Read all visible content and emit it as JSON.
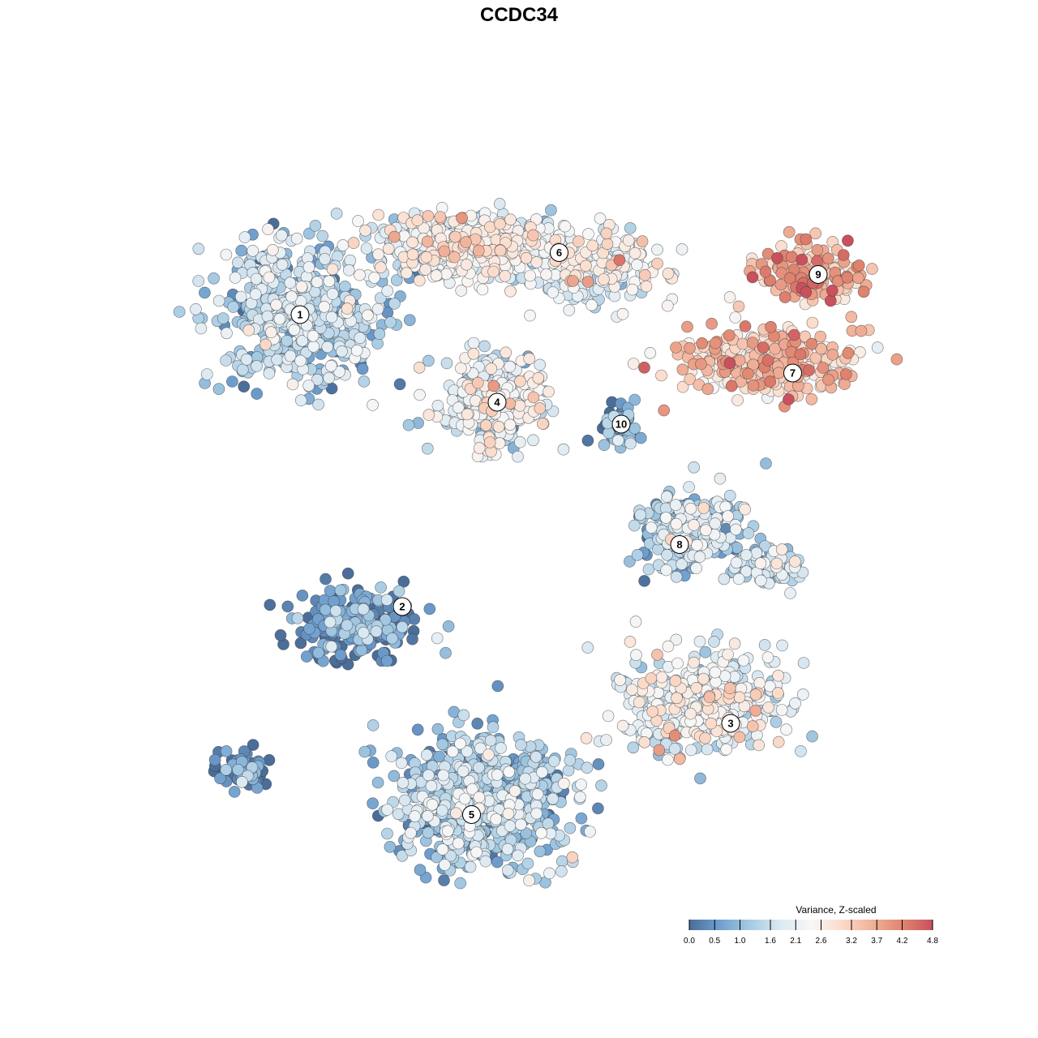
{
  "chart_data": {
    "type": "scatter",
    "title": "CCDC34",
    "xlabel": "",
    "ylabel": "",
    "grid": false,
    "axes_visible": false,
    "legend": {
      "title": "Variance, Z-scaled",
      "placement": "bottom-right",
      "range": [
        0.0,
        4.8
      ],
      "ticks": [
        {
          "value": 0.0,
          "label": "0.0"
        },
        {
          "value": 0.5,
          "label": "0.5"
        },
        {
          "value": 1.0,
          "label": "1.0"
        },
        {
          "value": 1.6,
          "label": "1.6"
        },
        {
          "value": 2.1,
          "label": "2.1"
        },
        {
          "value": 2.6,
          "label": "2.6"
        },
        {
          "value": 3.2,
          "label": "3.2"
        },
        {
          "value": 3.7,
          "label": "3.7"
        },
        {
          "value": 4.2,
          "label": "4.2"
        },
        {
          "value": 4.8,
          "label": "4.8"
        }
      ],
      "colors": [
        "#4a6d99",
        "#6f9fcf",
        "#a6cbe3",
        "#dce9f2",
        "#f7f7f7",
        "#fbdccb",
        "#f1b19a",
        "#e0856f",
        "#c9505d"
      ]
    },
    "clusters": [
      {
        "label": "1",
        "x": -6.0,
        "y": 5.6,
        "mean_value": 1.3
      },
      {
        "label": "2",
        "x": -3.2,
        "y": -2.4,
        "mean_value": 0.4
      },
      {
        "label": "3",
        "x": 5.8,
        "y": -5.6,
        "mean_value": 2.0
      },
      {
        "label": "4",
        "x": -0.6,
        "y": 3.2,
        "mean_value": 1.9
      },
      {
        "label": "5",
        "x": -1.3,
        "y": -8.1,
        "mean_value": 1.2
      },
      {
        "label": "6",
        "x": 1.1,
        "y": 7.3,
        "mean_value": 2.1
      },
      {
        "label": "7",
        "x": 7.5,
        "y": 4.0,
        "mean_value": 3.2
      },
      {
        "label": "8",
        "x": 4.4,
        "y": -0.7,
        "mean_value": 1.4
      },
      {
        "label": "9",
        "x": 8.2,
        "y": 6.7,
        "mean_value": 3.6
      },
      {
        "label": "10",
        "x": 2.8,
        "y": 2.6,
        "mean_value": 0.8
      }
    ]
  }
}
